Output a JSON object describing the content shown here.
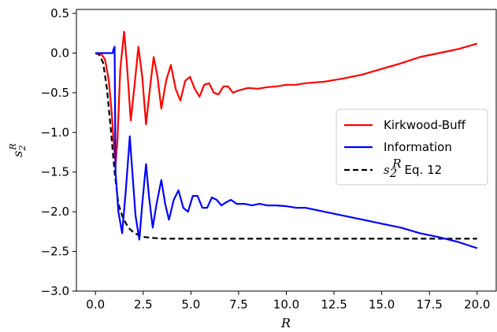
{
  "chart_data": {
    "type": "line",
    "xlabel": "R",
    "ylabel_main": "s",
    "ylabel_sub": "2",
    "ylabel_sup": "R",
    "xlim": [
      -1.0,
      21.0
    ],
    "ylim": [
      -3.0,
      0.55
    ],
    "x_ticks": [
      0.0,
      2.5,
      5.0,
      7.5,
      10.0,
      12.5,
      15.0,
      17.5,
      20.0
    ],
    "x_tick_labels": [
      "0.0",
      "2.5",
      "5.0",
      "7.5",
      "10.0",
      "12.5",
      "15.0",
      "17.5",
      "20.0"
    ],
    "y_ticks": [
      -3.0,
      -2.5,
      -2.0,
      -1.5,
      -1.0,
      -0.5,
      0.0,
      0.5
    ],
    "y_tick_labels": [
      "−3.0",
      "−2.5",
      "−2.0",
      "−1.5",
      "−1.0",
      "−0.5",
      "0.0",
      "0.5"
    ],
    "grid": false,
    "legend_position": "right",
    "series": [
      {
        "name": "Kirkwood-Buff",
        "color": "#ff0000",
        "dash": "solid",
        "x": [
          0.0,
          0.3,
          0.5,
          0.7,
          0.85,
          0.95,
          1.05,
          1.15,
          1.3,
          1.5,
          1.65,
          1.85,
          2.05,
          2.25,
          2.45,
          2.65,
          2.85,
          3.05,
          3.25,
          3.45,
          3.7,
          3.95,
          4.2,
          4.45,
          4.7,
          4.95,
          5.2,
          5.45,
          5.7,
          5.95,
          6.2,
          6.45,
          6.7,
          6.95,
          7.2,
          7.5,
          8.0,
          8.5,
          9.0,
          9.5,
          10.0,
          10.5,
          11.0,
          12.0,
          13.0,
          14.0,
          15.0,
          16.0,
          17.0,
          18.0,
          19.0,
          20.0
        ],
        "y": [
          0.0,
          -0.01,
          -0.08,
          -0.35,
          -0.75,
          -1.1,
          -1.4,
          -1.1,
          -0.2,
          0.27,
          -0.15,
          -0.85,
          -0.4,
          0.08,
          -0.3,
          -0.9,
          -0.45,
          -0.05,
          -0.3,
          -0.7,
          -0.35,
          -0.15,
          -0.45,
          -0.6,
          -0.35,
          -0.3,
          -0.45,
          -0.55,
          -0.4,
          -0.38,
          -0.5,
          -0.52,
          -0.42,
          -0.42,
          -0.5,
          -0.47,
          -0.44,
          -0.45,
          -0.43,
          -0.42,
          -0.4,
          -0.4,
          -0.38,
          -0.36,
          -0.32,
          -0.27,
          -0.2,
          -0.13,
          -0.05,
          0.0,
          0.05,
          0.12
        ]
      },
      {
        "name": "Information",
        "color": "#0000ff",
        "dash": "solid",
        "x": [
          0.0,
          0.5,
          0.9,
          0.95,
          1.0,
          1.05,
          1.2,
          1.4,
          1.6,
          1.8,
          1.9,
          2.1,
          2.3,
          2.45,
          2.65,
          2.8,
          3.0,
          3.2,
          3.45,
          3.65,
          3.85,
          4.1,
          4.35,
          4.6,
          4.85,
          5.1,
          5.35,
          5.6,
          5.85,
          6.1,
          6.35,
          6.6,
          6.85,
          7.1,
          7.4,
          7.8,
          8.2,
          8.6,
          9.0,
          9.5,
          10.0,
          10.5,
          11.0,
          12.0,
          13.0,
          14.0,
          15.0,
          16.0,
          17.0,
          18.0,
          19.0,
          20.0
        ],
        "y": [
          0.0,
          0.0,
          0.0,
          0.05,
          0.08,
          -1.5,
          -2.0,
          -2.27,
          -1.7,
          -1.05,
          -1.4,
          -2.05,
          -2.35,
          -1.9,
          -1.4,
          -1.8,
          -2.2,
          -1.9,
          -1.6,
          -1.9,
          -2.1,
          -1.85,
          -1.73,
          -1.95,
          -2.0,
          -1.8,
          -1.8,
          -1.95,
          -1.95,
          -1.82,
          -1.85,
          -1.92,
          -1.88,
          -1.85,
          -1.9,
          -1.9,
          -1.92,
          -1.9,
          -1.92,
          -1.92,
          -1.93,
          -1.95,
          -1.95,
          -2.0,
          -2.05,
          -2.1,
          -2.15,
          -2.2,
          -2.27,
          -2.32,
          -2.38,
          -2.46
        ]
      },
      {
        "name": "Eq. 12",
        "name_math_main": "s",
        "name_math_sub": "2",
        "name_math_sup": "R",
        "color": "#000000",
        "dash": "dashed",
        "x": [
          0.0,
          0.2,
          0.4,
          0.6,
          0.8,
          1.0,
          1.2,
          1.4,
          1.6,
          1.8,
          2.0,
          2.3,
          2.6,
          3.0,
          3.5,
          4.0,
          5.0,
          6.0,
          8.0,
          10.0,
          12.0,
          15.0,
          18.0,
          20.0
        ],
        "y": [
          0.0,
          -0.02,
          -0.12,
          -0.45,
          -0.95,
          -1.5,
          -1.9,
          -2.05,
          -2.15,
          -2.22,
          -2.26,
          -2.3,
          -2.32,
          -2.33,
          -2.34,
          -2.34,
          -2.34,
          -2.34,
          -2.34,
          -2.34,
          -2.34,
          -2.34,
          -2.34,
          -2.34
        ]
      }
    ]
  }
}
